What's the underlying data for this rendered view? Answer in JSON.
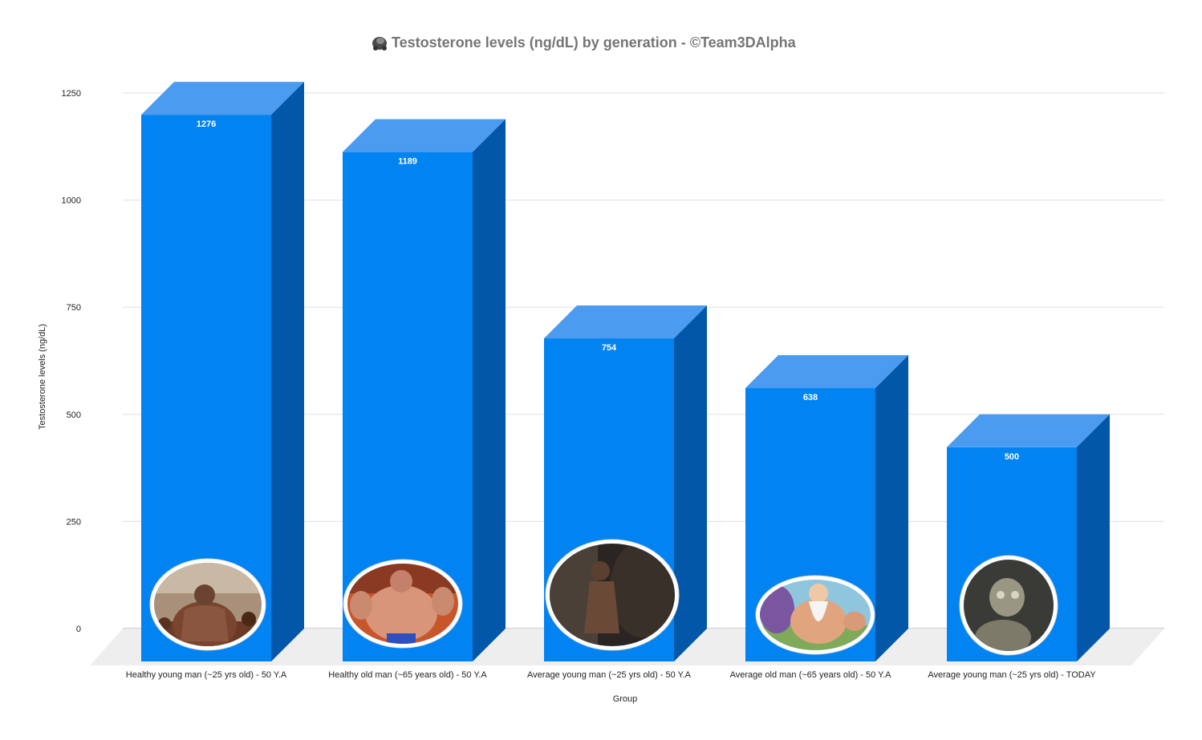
{
  "chart_data": {
    "type": "bar",
    "title": "Testosterone levels (ng/dL) by generation - ©Team3DAlpha",
    "title_icon": "gorilla-icon",
    "xlabel": "Group",
    "ylabel": "Testosterone levels (ng/dL)",
    "categories": [
      "Healthy young man (~25 yrs old) - 50 Y.A",
      "Healthy old man (~65 years old) - 50 Y.A",
      "Average young man (~25 yrs old) - 50 Y.A",
      "Average old man (~65 years old) - 50 Y.A",
      "Average young man (~25 yrs old) - TODAY"
    ],
    "values": [
      1276,
      1189,
      754,
      638,
      500
    ],
    "data_labels": [
      "1276",
      "1189",
      "754",
      "638",
      "500"
    ],
    "yticks": [
      "0",
      "250",
      "500",
      "750",
      "1000",
      "1250"
    ],
    "ylim": [
      0,
      1250
    ],
    "grid": true,
    "legend": "none",
    "style": "3d",
    "colors": {
      "front": "#0283f2",
      "top": "#4b9bf0",
      "side": "#0257a8",
      "grid": "#e0e0e0",
      "floor": "#eeeeee"
    },
    "bar_images": [
      "spartan-warrior-photo",
      "muscular-old-anime-fighter",
      "spartan-warrior-back-photo",
      "muscular-old-anime-master",
      "pale-creature-photo"
    ]
  }
}
